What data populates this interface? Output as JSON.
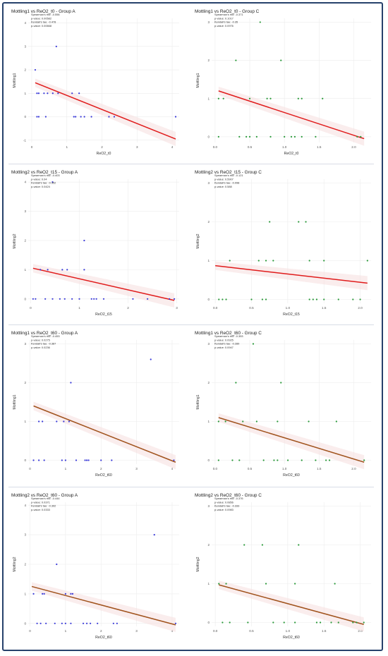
{
  "colors": {
    "border": "#27416b",
    "group_a_points": "#3a3ad9",
    "group_c_points": "#2a9a3a",
    "fit_red": "#e01b1b",
    "fit_brown": "#a0521c",
    "confidence_band": "#f6dede"
  },
  "chart_data": [
    {
      "type": "scatter",
      "title": "Mottling1 vs ReO2_t0 - Group A",
      "xlabel": "ReO2_t0",
      "ylabel": "Mottling1",
      "xlim": [
        -0.1,
        4.2
      ],
      "ylim": [
        -1.1,
        4.2
      ],
      "xticks": [
        "0",
        "1",
        "2",
        "3",
        "4"
      ],
      "yticks": [
        "-1",
        "0",
        "1",
        "2",
        "3",
        "4"
      ],
      "grid": true,
      "stats": [
        "Spearman's rho: -0.556",
        "p-value: 0.00582",
        "Kendall's tau: -0.478",
        "p-value: 0.00668"
      ],
      "points": [
        [
          0.1,
          2
        ],
        [
          0.15,
          1
        ],
        [
          0.2,
          1
        ],
        [
          0.35,
          1
        ],
        [
          0.45,
          1
        ],
        [
          0.7,
          3
        ],
        [
          0.6,
          1
        ],
        [
          0.75,
          1
        ],
        [
          1.15,
          1
        ],
        [
          1.35,
          1
        ],
        [
          0.15,
          0
        ],
        [
          0.2,
          0
        ],
        [
          0.4,
          0
        ],
        [
          1.2,
          0
        ],
        [
          1.25,
          0
        ],
        [
          1.4,
          0
        ],
        [
          1.5,
          0
        ],
        [
          1.7,
          0
        ],
        [
          2.2,
          0
        ],
        [
          2.35,
          0
        ],
        [
          4.1,
          0
        ]
      ],
      "fit": [
        [
          0.1,
          1.45
        ],
        [
          4.1,
          -0.95
        ]
      ]
    },
    {
      "type": "scatter",
      "title": "Mottling1 vs ReO2_t0 - Group C",
      "xlabel": "ReO2_t0",
      "ylabel": "Mottling1",
      "xlim": [
        -0.05,
        2.25
      ],
      "ylim": [
        -0.15,
        3.1
      ],
      "xticks": [
        "0.0",
        "0.5",
        "1.0",
        "1.5",
        "2.0"
      ],
      "yticks": [
        "0",
        "1",
        "2",
        "3"
      ],
      "grid": true,
      "stats": [
        "Spearman's rho: -0.371",
        "p-value: 0.1017",
        "Kendall's tau: -0.35",
        "p-value: 0.0976"
      ],
      "points": [
        [
          0.05,
          1
        ],
        [
          0.12,
          1
        ],
        [
          0.3,
          2
        ],
        [
          0.5,
          1
        ],
        [
          0.75,
          1
        ],
        [
          0.8,
          1
        ],
        [
          0.95,
          2
        ],
        [
          1.2,
          1
        ],
        [
          1.25,
          1
        ],
        [
          1.55,
          1
        ],
        [
          0.65,
          3
        ],
        [
          0.05,
          0
        ],
        [
          0.35,
          0
        ],
        [
          0.45,
          0
        ],
        [
          0.5,
          0
        ],
        [
          0.6,
          0
        ],
        [
          0.8,
          0
        ],
        [
          1.0,
          0
        ],
        [
          1.1,
          0
        ],
        [
          1.15,
          0
        ],
        [
          1.25,
          0
        ],
        [
          1.45,
          0
        ],
        [
          2.05,
          0
        ],
        [
          2.1,
          0
        ]
      ],
      "fit": [
        [
          0.05,
          1.2
        ],
        [
          2.15,
          -0.05
        ]
      ]
    },
    {
      "type": "scatter",
      "title": "Mottling2 vs ReO2_t15 - Group A",
      "xlabel": "ReO2_t15",
      "ylabel": "Mottling2",
      "xlim": [
        -0.05,
        3.05
      ],
      "ylim": [
        -0.15,
        4.1
      ],
      "xticks": [
        "0",
        "1",
        "2",
        "3"
      ],
      "yticks": [
        "0",
        "1",
        "2",
        "3",
        "4"
      ],
      "grid": true,
      "stats": [
        "Spearman's rho: -0.403",
        "p-value: 0.04",
        "Kendall's tau: -0.352",
        "p-value: 0.0424"
      ],
      "points": [
        [
          0.2,
          1
        ],
        [
          0.35,
          1
        ],
        [
          0.65,
          1
        ],
        [
          0.75,
          1
        ],
        [
          0.45,
          4
        ],
        [
          1.1,
          2
        ],
        [
          1.1,
          1
        ],
        [
          0.05,
          0
        ],
        [
          0.1,
          0
        ],
        [
          0.3,
          0
        ],
        [
          0.45,
          0
        ],
        [
          0.6,
          0
        ],
        [
          0.7,
          0
        ],
        [
          0.85,
          0
        ],
        [
          1.0,
          0
        ],
        [
          1.25,
          0
        ],
        [
          1.3,
          0
        ],
        [
          1.35,
          0
        ],
        [
          1.5,
          0
        ],
        [
          2.1,
          0
        ],
        [
          2.4,
          0
        ],
        [
          2.85,
          0
        ],
        [
          2.95,
          0
        ]
      ],
      "fit": [
        [
          0.05,
          1.05
        ],
        [
          2.95,
          -0.05
        ]
      ]
    },
    {
      "type": "scatter",
      "title": "Mottling2 vs ReO2_t15 - Group C",
      "xlabel": "ReO2_t15",
      "ylabel": "Mottling2",
      "xlim": [
        -0.05,
        2.15
      ],
      "ylim": [
        -0.1,
        3.1
      ],
      "xticks": [
        "0.0",
        "0.5",
        "1.0",
        "1.5",
        "2.0"
      ],
      "yticks": [
        "0",
        "1",
        "2",
        "3"
      ],
      "grid": true,
      "stats": [
        "Spearman's rho: -0.121",
        "p-value: 0.5907",
        "Kendall's tau: -0.098",
        "p-value: 0.588"
      ],
      "points": [
        [
          0.2,
          1
        ],
        [
          0.6,
          1
        ],
        [
          0.7,
          1
        ],
        [
          0.75,
          2
        ],
        [
          0.8,
          1
        ],
        [
          1.15,
          2
        ],
        [
          1.25,
          2
        ],
        [
          1.3,
          1
        ],
        [
          1.5,
          1
        ],
        [
          2.1,
          1
        ],
        [
          0.05,
          0
        ],
        [
          0.1,
          0
        ],
        [
          0.15,
          0
        ],
        [
          0.5,
          0
        ],
        [
          0.65,
          0
        ],
        [
          0.7,
          0
        ],
        [
          1.3,
          0
        ],
        [
          1.35,
          0
        ],
        [
          1.4,
          0
        ],
        [
          1.5,
          0
        ],
        [
          1.7,
          0
        ],
        [
          1.9,
          0
        ],
        [
          2.0,
          0
        ]
      ],
      "fit": [
        [
          0.0,
          0.87
        ],
        [
          2.1,
          0.42
        ]
      ]
    },
    {
      "type": "scatter",
      "title": "Mottling1 vs ReO2_t60 - Group A",
      "xlabel": "ReO2_t60",
      "ylabel": "Mottling1",
      "xlim": [
        -0.05,
        4.2
      ],
      "ylim": [
        -0.1,
        3.1
      ],
      "xticks": [
        "0",
        "1",
        "2",
        "3",
        "4"
      ],
      "yticks": [
        "0",
        "1",
        "2",
        "3"
      ],
      "grid": true,
      "stats": [
        "Spearman's rho: -0.453",
        "p-value: 0.0275",
        "Kendall's tau: -0.387",
        "p-value: 0.0236"
      ],
      "points": [
        [
          0.25,
          1
        ],
        [
          0.35,
          1
        ],
        [
          0.75,
          1
        ],
        [
          0.95,
          1
        ],
        [
          1.1,
          1
        ],
        [
          1.15,
          2
        ],
        [
          3.4,
          2.6
        ],
        [
          0.1,
          0
        ],
        [
          0.25,
          0
        ],
        [
          0.4,
          0
        ],
        [
          0.9,
          0
        ],
        [
          1.0,
          0
        ],
        [
          1.3,
          0
        ],
        [
          1.55,
          0
        ],
        [
          1.6,
          0
        ],
        [
          1.65,
          0
        ],
        [
          2.0,
          0
        ],
        [
          2.3,
          0
        ],
        [
          4.05,
          0
        ]
      ],
      "fit": [
        [
          0.1,
          1.4
        ],
        [
          4.1,
          -0.05
        ]
      ]
    },
    {
      "type": "scatter",
      "title": "Mottling1 vs ReO2_t60 - Group C",
      "xlabel": "ReO2_t60",
      "ylabel": "Mottling1",
      "xlim": [
        -0.05,
        2.25
      ],
      "ylim": [
        -0.1,
        3.1
      ],
      "xticks": [
        "0.0",
        "0.5",
        "1.0",
        "1.5",
        "2.0"
      ],
      "yticks": [
        "0",
        "1",
        "2",
        "3"
      ],
      "grid": true,
      "stats": [
        "Spearman's rho: -0.353",
        "p-value: 0.0925",
        "Kendall's tau: -0.289",
        "p-value: 0.0947"
      ],
      "points": [
        [
          0.05,
          1
        ],
        [
          0.15,
          1
        ],
        [
          0.3,
          2
        ],
        [
          0.4,
          1
        ],
        [
          0.55,
          3
        ],
        [
          0.6,
          1
        ],
        [
          0.9,
          1
        ],
        [
          0.95,
          2
        ],
        [
          1.35,
          1
        ],
        [
          1.75,
          1
        ],
        [
          0.05,
          0
        ],
        [
          0.25,
          0
        ],
        [
          0.35,
          0
        ],
        [
          0.7,
          0
        ],
        [
          0.85,
          0
        ],
        [
          0.9,
          0
        ],
        [
          1.05,
          0
        ],
        [
          1.25,
          0
        ],
        [
          1.45,
          0
        ],
        [
          1.6,
          0
        ],
        [
          1.65,
          0
        ],
        [
          2.15,
          0
        ]
      ],
      "fit": [
        [
          0.05,
          1.1
        ],
        [
          2.15,
          -0.05
        ]
      ]
    },
    {
      "type": "scatter",
      "title": "Mottling2 vs ReO2_t60 - Group A",
      "xlabel": "ReO2_t60",
      "ylabel": "Mottling2",
      "xlim": [
        -0.05,
        4.2
      ],
      "ylim": [
        -0.1,
        4.1
      ],
      "xticks": [
        "0",
        "1",
        "2",
        "3",
        "4"
      ],
      "yticks": [
        "0",
        "1",
        "2",
        "3",
        "4"
      ],
      "grid": true,
      "stats": [
        "Spearman's rho: -0.444",
        "p-value: 0.0371",
        "Kendall's tau: -0.392",
        "p-value: 0.0333"
      ],
      "points": [
        [
          0.1,
          1
        ],
        [
          0.35,
          1
        ],
        [
          0.4,
          1
        ],
        [
          0.75,
          2
        ],
        [
          1.0,
          1
        ],
        [
          1.15,
          1
        ],
        [
          1.2,
          1
        ],
        [
          3.5,
          3
        ],
        [
          0.2,
          0
        ],
        [
          0.3,
          0
        ],
        [
          0.45,
          0
        ],
        [
          0.7,
          0
        ],
        [
          0.9,
          0
        ],
        [
          1.0,
          0
        ],
        [
          1.15,
          0
        ],
        [
          1.5,
          0
        ],
        [
          1.6,
          0
        ],
        [
          1.7,
          0
        ],
        [
          1.9,
          0
        ],
        [
          2.35,
          0
        ],
        [
          2.45,
          0
        ],
        [
          4.1,
          0
        ]
      ],
      "fit": [
        [
          0.05,
          1.25
        ],
        [
          4.1,
          -0.05
        ]
      ]
    },
    {
      "type": "scatter",
      "title": "Mottling2 vs ReO2_t60 - Group C",
      "xlabel": "ReO2_t60",
      "ylabel": "Mottling2",
      "xlim": [
        -0.05,
        2.15
      ],
      "ylim": [
        -0.1,
        3.1
      ],
      "xticks": [
        "0.0",
        "0.5",
        "1.0",
        "1.5",
        "2.0"
      ],
      "yticks": [
        "0",
        "1",
        "2",
        "3"
      ],
      "grid": true,
      "stats": [
        "Spearman's rho: -0.376",
        "p-value: 0.0856",
        "Kendall's tau: -0.333",
        "p-value: 0.0983"
      ],
      "points": [
        [
          0.05,
          1
        ],
        [
          0.15,
          1
        ],
        [
          0.4,
          2
        ],
        [
          0.65,
          2
        ],
        [
          0.7,
          1
        ],
        [
          1.1,
          1
        ],
        [
          1.15,
          2
        ],
        [
          1.65,
          1
        ],
        [
          0.1,
          0
        ],
        [
          0.2,
          0
        ],
        [
          0.45,
          0
        ],
        [
          0.8,
          0
        ],
        [
          0.95,
          0
        ],
        [
          1.1,
          0
        ],
        [
          1.4,
          0
        ],
        [
          1.45,
          0
        ],
        [
          1.6,
          0
        ],
        [
          1.7,
          0
        ],
        [
          1.9,
          0
        ],
        [
          1.95,
          0
        ],
        [
          2.05,
          0
        ]
      ],
      "fit": [
        [
          0.05,
          0.97
        ],
        [
          2.05,
          -0.05
        ]
      ]
    }
  ]
}
